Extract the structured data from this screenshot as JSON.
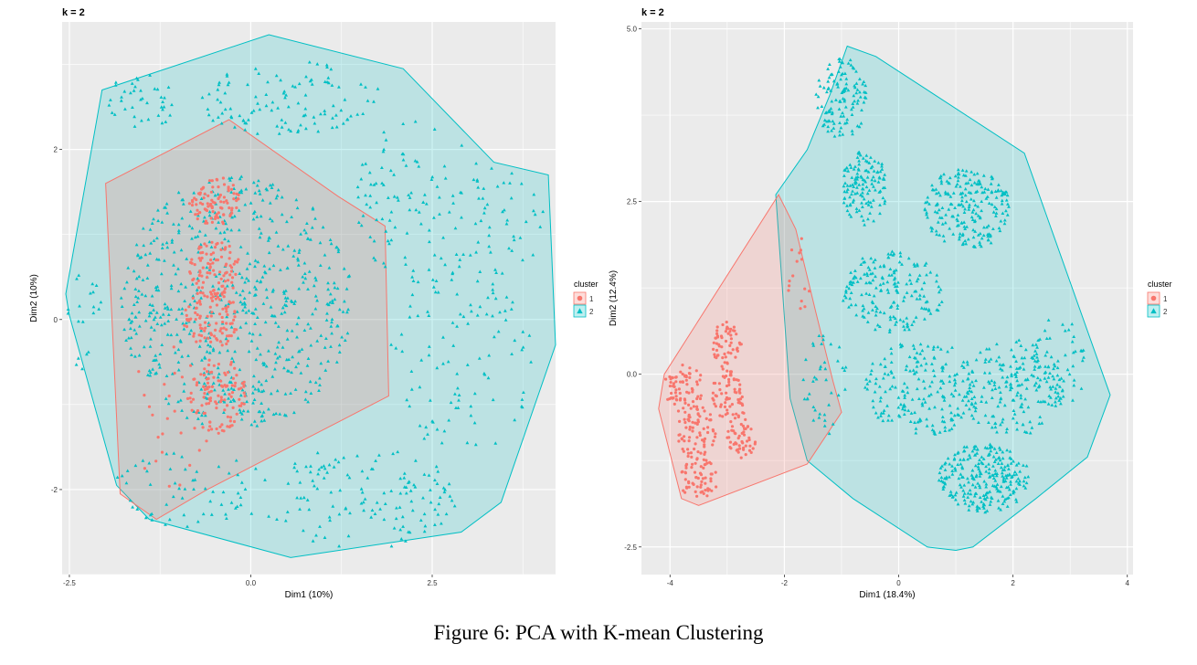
{
  "figure": {
    "caption": "Figure 6: PCA with K-mean Clustering"
  },
  "colors": {
    "panel_bg": "#EBEBEB",
    "grid": "#FFFFFF",
    "cluster1": "#F8766D",
    "cluster2": "#00BFC4",
    "text": "#333333"
  },
  "chart_data": [
    {
      "type": "scatter",
      "title": "k = 2",
      "xlabel": "Dim1 (10%)",
      "ylabel": "Dim2 (10%)",
      "xlim": [
        -2.6,
        4.2
      ],
      "ylim": [
        -3.0,
        3.5
      ],
      "xticks": [
        -2.5,
        0.0,
        2.5
      ],
      "xtick_labels": [
        "-2.5",
        "0.0",
        "2.5"
      ],
      "yticks": [
        -2,
        0,
        2
      ],
      "ytick_labels": [
        "-2",
        "0",
        "2"
      ],
      "grid": true,
      "legend": {
        "title": "cluster",
        "position": "right",
        "entries": [
          "1",
          "2"
        ]
      },
      "series": [
        {
          "name": "1",
          "marker": "circle",
          "hull": [
            [
              -0.3,
              2.35
            ],
            [
              1.2,
              1.45
            ],
            [
              1.85,
              1.1
            ],
            [
              1.9,
              -0.9
            ],
            [
              -0.6,
              -2.0
            ],
            [
              -1.3,
              -2.35
            ],
            [
              -1.8,
              -2.05
            ],
            [
              -2.0,
              1.6
            ]
          ],
          "clusters": [
            {
              "cx": -0.5,
              "cy": 1.4,
              "rx": 0.35,
              "ry": 0.3,
              "n": 90
            },
            {
              "cx": -0.5,
              "cy": 0.6,
              "rx": 0.35,
              "ry": 0.35,
              "n": 90
            },
            {
              "cx": -0.55,
              "cy": 0.0,
              "rx": 0.4,
              "ry": 0.35,
              "n": 100
            },
            {
              "cx": -0.45,
              "cy": -0.9,
              "rx": 0.4,
              "ry": 0.45,
              "n": 110
            },
            {
              "cx": -1.1,
              "cy": -1.1,
              "rx": 0.6,
              "ry": 0.9,
              "n": 25
            }
          ]
        },
        {
          "name": "2",
          "marker": "triangle",
          "hull": [
            [
              -2.05,
              2.7
            ],
            [
              0.25,
              3.35
            ],
            [
              2.1,
              2.95
            ],
            [
              3.35,
              1.85
            ],
            [
              4.1,
              1.7
            ],
            [
              4.2,
              -0.3
            ],
            [
              3.45,
              -2.15
            ],
            [
              2.9,
              -2.5
            ],
            [
              0.55,
              -2.8
            ],
            [
              -1.4,
              -2.35
            ],
            [
              -1.85,
              -1.95
            ],
            [
              -2.5,
              0.05
            ],
            [
              -2.55,
              0.3
            ]
          ],
          "clusters": [
            {
              "cx": -0.2,
              "cy": 0.2,
              "rx": 1.6,
              "ry": 1.5,
              "n": 650
            },
            {
              "cx": 0.5,
              "cy": 2.6,
              "rx": 1.3,
              "ry": 0.45,
              "n": 110
            },
            {
              "cx": -1.5,
              "cy": 2.55,
              "rx": 0.5,
              "ry": 0.35,
              "n": 40
            },
            {
              "cx": 2.4,
              "cy": 1.4,
              "rx": 1.0,
              "ry": 1.0,
              "n": 110
            },
            {
              "cx": 2.9,
              "cy": -0.4,
              "rx": 1.0,
              "ry": 1.2,
              "n": 110
            },
            {
              "cx": 1.5,
              "cy": -2.1,
              "rx": 1.4,
              "ry": 0.6,
              "n": 130
            },
            {
              "cx": -0.8,
              "cy": -2.0,
              "rx": 1.1,
              "ry": 0.45,
              "n": 60
            },
            {
              "cx": 3.6,
              "cy": 1.2,
              "rx": 0.5,
              "ry": 0.6,
              "n": 30
            },
            {
              "cx": -2.3,
              "cy": 0.0,
              "rx": 0.25,
              "ry": 0.6,
              "n": 20
            }
          ]
        }
      ]
    },
    {
      "type": "scatter",
      "title": "k = 2",
      "xlabel": "Dim1 (18.4%)",
      "ylabel": "Dim2 (12.4%)",
      "xlim": [
        -4.5,
        4.1
      ],
      "ylim": [
        -2.9,
        5.1
      ],
      "xticks": [
        -4,
        -2,
        0,
        2,
        4
      ],
      "xtick_labels": [
        "-4",
        "-2",
        "0",
        "2",
        "4"
      ],
      "yticks": [
        -2.5,
        0.0,
        2.5,
        5.0
      ],
      "ytick_labels": [
        "-2.5",
        "0.0",
        "2.5",
        "5.0"
      ],
      "grid": true,
      "legend": {
        "title": "cluster",
        "position": "right",
        "entries": [
          "1",
          "2"
        ]
      },
      "series": [
        {
          "name": "1",
          "marker": "circle",
          "hull": [
            [
              -2.1,
              2.6
            ],
            [
              -1.8,
              2.1
            ],
            [
              -1.45,
              0.9
            ],
            [
              -1.15,
              -0.1
            ],
            [
              -1.0,
              -0.55
            ],
            [
              -1.6,
              -1.3
            ],
            [
              -3.5,
              -1.9
            ],
            [
              -3.8,
              -1.8
            ],
            [
              -4.2,
              -0.5
            ],
            [
              -4.1,
              0.0
            ]
          ],
          "clusters": [
            {
              "cx": -3.0,
              "cy": 0.4,
              "rx": 0.25,
              "ry": 0.4,
              "n": 60
            },
            {
              "cx": -3.75,
              "cy": -0.2,
              "rx": 0.35,
              "ry": 0.35,
              "n": 70
            },
            {
              "cx": -3.0,
              "cy": -0.3,
              "rx": 0.3,
              "ry": 0.35,
              "n": 60
            },
            {
              "cx": -3.55,
              "cy": -0.85,
              "rx": 0.35,
              "ry": 0.4,
              "n": 75
            },
            {
              "cx": -2.75,
              "cy": -0.9,
              "rx": 0.25,
              "ry": 0.35,
              "n": 55
            },
            {
              "cx": -3.5,
              "cy": -1.5,
              "rx": 0.35,
              "ry": 0.3,
              "n": 60
            },
            {
              "cx": -1.75,
              "cy": 1.4,
              "rx": 0.2,
              "ry": 0.6,
              "n": 15
            }
          ]
        },
        {
          "name": "2",
          "marker": "triangle",
          "hull": [
            [
              -0.9,
              4.75
            ],
            [
              -0.4,
              4.6
            ],
            [
              2.2,
              3.2
            ],
            [
              3.7,
              -0.3
            ],
            [
              3.3,
              -1.2
            ],
            [
              2.4,
              -1.8
            ],
            [
              1.3,
              -2.5
            ],
            [
              1.0,
              -2.55
            ],
            [
              0.5,
              -2.5
            ],
            [
              -0.8,
              -1.8
            ],
            [
              -1.6,
              -1.25
            ],
            [
              -1.9,
              -0.35
            ],
            [
              -2.15,
              2.6
            ],
            [
              -1.6,
              3.25
            ],
            [
              -1.2,
              4.05
            ]
          ],
          "clusters": [
            {
              "cx": -1.0,
              "cy": 4.0,
              "rx": 0.45,
              "ry": 0.6,
              "n": 120
            },
            {
              "cx": -0.6,
              "cy": 2.7,
              "rx": 0.4,
              "ry": 0.55,
              "n": 130
            },
            {
              "cx": 1.2,
              "cy": 2.4,
              "rx": 0.75,
              "ry": 0.6,
              "n": 220
            },
            {
              "cx": -0.1,
              "cy": 1.2,
              "rx": 0.9,
              "ry": 0.6,
              "n": 180
            },
            {
              "cx": 0.4,
              "cy": -0.2,
              "rx": 1.0,
              "ry": 0.7,
              "n": 200
            },
            {
              "cx": 2.0,
              "cy": -0.2,
              "rx": 0.9,
              "ry": 0.7,
              "n": 180
            },
            {
              "cx": 1.5,
              "cy": -1.5,
              "rx": 0.8,
              "ry": 0.5,
              "n": 260
            },
            {
              "cx": 2.8,
              "cy": 0.2,
              "rx": 0.5,
              "ry": 0.7,
              "n": 60
            },
            {
              "cx": -1.3,
              "cy": -0.1,
              "rx": 0.4,
              "ry": 0.8,
              "n": 40
            }
          ]
        }
      ]
    }
  ]
}
